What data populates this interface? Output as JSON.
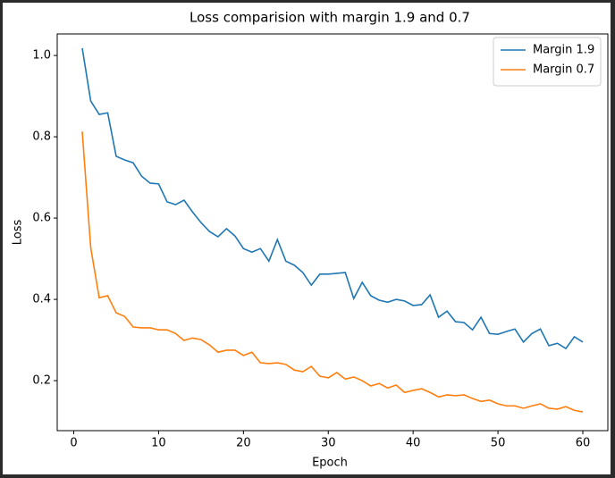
{
  "chart_data": {
    "type": "line",
    "title": "Loss comparision with margin 1.9 and 0.7",
    "x_label": "Epoch",
    "y_label": "Loss",
    "x": [
      1,
      2,
      3,
      4,
      5,
      6,
      7,
      8,
      9,
      10,
      11,
      12,
      13,
      14,
      15,
      16,
      17,
      18,
      19,
      20,
      21,
      22,
      23,
      24,
      25,
      26,
      27,
      28,
      29,
      30,
      31,
      32,
      33,
      34,
      35,
      36,
      37,
      38,
      39,
      40,
      41,
      42,
      43,
      44,
      45,
      46,
      47,
      48,
      49,
      50,
      51,
      52,
      53,
      54,
      55,
      56,
      57,
      58,
      59,
      60
    ],
    "series": [
      {
        "name": "Margin 1.9",
        "color": "#1f77b4",
        "values": [
          1.018,
          0.888,
          0.855,
          0.859,
          0.752,
          0.743,
          0.736,
          0.703,
          0.686,
          0.684,
          0.64,
          0.633,
          0.644,
          0.615,
          0.589,
          0.567,
          0.554,
          0.574,
          0.556,
          0.525,
          0.516,
          0.525,
          0.494,
          0.547,
          0.494,
          0.484,
          0.466,
          0.435,
          0.462,
          0.462,
          0.464,
          0.466,
          0.402,
          0.442,
          0.409,
          0.398,
          0.393,
          0.4,
          0.396,
          0.385,
          0.387,
          0.411,
          0.356,
          0.371,
          0.345,
          0.343,
          0.325,
          0.356,
          0.316,
          0.314,
          0.321,
          0.327,
          0.295,
          0.316,
          0.327,
          0.286,
          0.292,
          0.279,
          0.308,
          0.295
        ]
      },
      {
        "name": "Margin 0.7",
        "color": "#ff7f0e",
        "values": [
          0.813,
          0.527,
          0.404,
          0.409,
          0.367,
          0.358,
          0.332,
          0.33,
          0.33,
          0.325,
          0.325,
          0.316,
          0.299,
          0.305,
          0.301,
          0.288,
          0.27,
          0.275,
          0.275,
          0.262,
          0.27,
          0.244,
          0.242,
          0.244,
          0.24,
          0.226,
          0.222,
          0.235,
          0.211,
          0.207,
          0.22,
          0.204,
          0.209,
          0.2,
          0.187,
          0.193,
          0.182,
          0.189,
          0.171,
          0.176,
          0.18,
          0.171,
          0.16,
          0.165,
          0.163,
          0.165,
          0.156,
          0.149,
          0.152,
          0.143,
          0.138,
          0.138,
          0.132,
          0.138,
          0.143,
          0.132,
          0.13,
          0.136,
          0.127,
          0.123
        ]
      }
    ],
    "xlim": [
      -1.95,
      62.95
    ],
    "ylim": [
      0.077,
      1.053
    ],
    "xticks": [
      0,
      10,
      20,
      30,
      40,
      50,
      60
    ],
    "yticks": [
      0.2,
      0.4,
      0.6,
      0.8,
      {
        "value": 1,
        "label": "1.0"
      }
    ],
    "grid": false,
    "legend": "upper right"
  }
}
